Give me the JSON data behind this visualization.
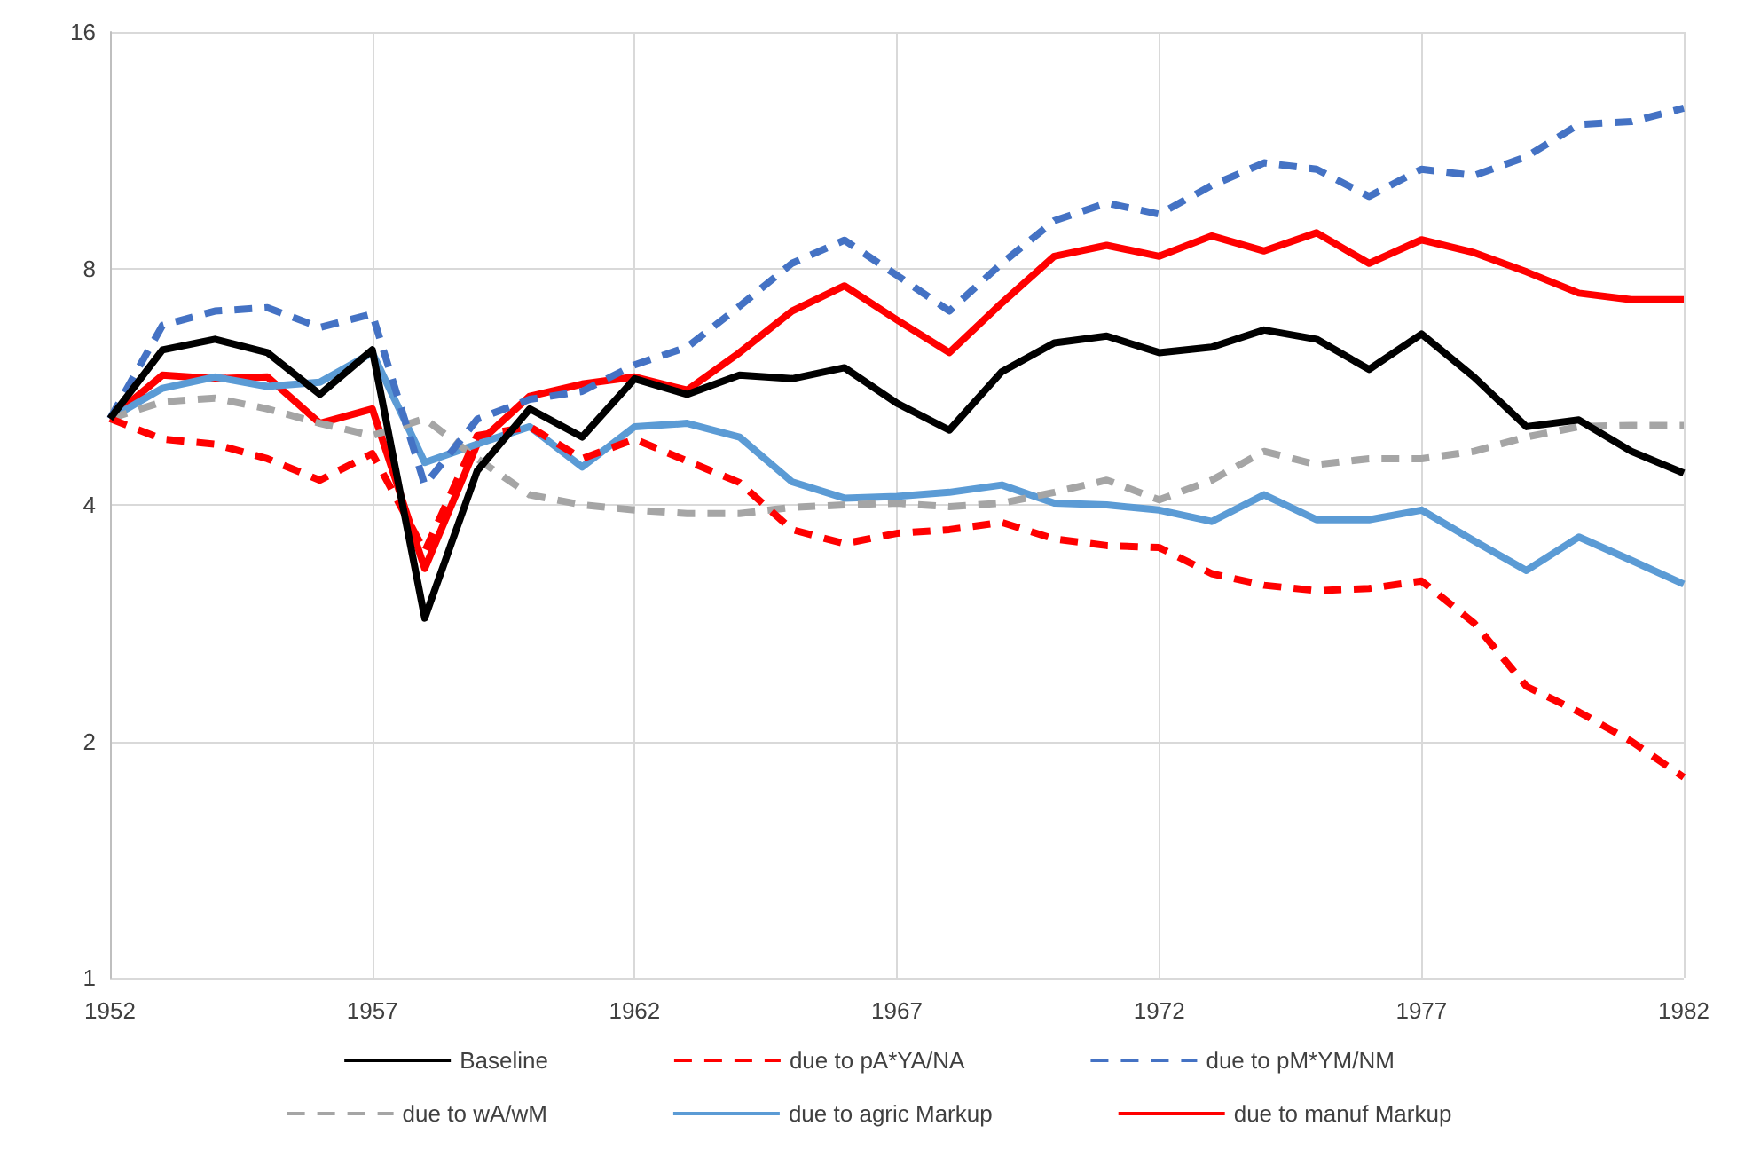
{
  "chart_data": {
    "type": "line",
    "x": [
      1952,
      1953,
      1954,
      1955,
      1956,
      1957,
      1958,
      1959,
      1960,
      1961,
      1962,
      1963,
      1964,
      1965,
      1966,
      1967,
      1968,
      1969,
      1970,
      1971,
      1972,
      1973,
      1974,
      1975,
      1976,
      1977,
      1978,
      1979,
      1980,
      1981,
      1982
    ],
    "xlim": [
      1952,
      1982
    ],
    "xticks": [
      1952,
      1957,
      1962,
      1967,
      1972,
      1977,
      1982
    ],
    "ylim": [
      1,
      16
    ],
    "yticks": [
      1,
      2,
      4,
      8,
      16
    ],
    "log": "y",
    "grid": true,
    "legend": "bottom",
    "marker": "none",
    "series": [
      {
        "name": "Baseline",
        "color": "#000000",
        "line_style": "solid",
        "values": [
          5.15,
          6.3,
          6.5,
          6.25,
          5.53,
          6.3,
          2.87,
          4.42,
          5.3,
          4.88,
          5.79,
          5.53,
          5.85,
          5.79,
          5.98,
          5.39,
          4.98,
          5.91,
          6.43,
          6.56,
          6.25,
          6.35,
          6.68,
          6.5,
          5.95,
          6.6,
          5.82,
          5.03,
          5.13,
          4.68,
          4.39
        ]
      },
      {
        "name": "due to pA*YA/NA",
        "color": "#ff0000",
        "line_style": "dashed",
        "values": [
          5.15,
          4.85,
          4.78,
          4.58,
          4.3,
          4.65,
          3.49,
          4.9,
          5.03,
          4.58,
          4.85,
          4.55,
          4.27,
          3.72,
          3.57,
          3.68,
          3.72,
          3.8,
          3.62,
          3.55,
          3.53,
          3.27,
          3.16,
          3.11,
          3.13,
          3.2,
          2.83,
          2.35,
          2.18,
          2.0,
          1.8
        ]
      },
      {
        "name": "due to pM*YM/NM",
        "color": "#4472c4",
        "line_style": "dashed",
        "values": [
          5.15,
          6.77,
          7.06,
          7.13,
          6.73,
          7.0,
          4.24,
          5.14,
          5.45,
          5.58,
          6.03,
          6.35,
          7.16,
          8.12,
          8.69,
          7.84,
          7.06,
          8.12,
          9.2,
          9.69,
          9.38,
          10.2,
          10.9,
          10.7,
          9.88,
          10.7,
          10.5,
          11.1,
          12.2,
          12.3,
          12.8
        ]
      },
      {
        "name": "due to wA/wM",
        "color": "#a5a5a5",
        "line_style": "dashed",
        "values": [
          5.15,
          5.41,
          5.47,
          5.3,
          5.08,
          4.9,
          5.15,
          4.58,
          4.12,
          4.0,
          3.94,
          3.9,
          3.9,
          3.97,
          4.0,
          4.02,
          3.98,
          4.02,
          4.15,
          4.3,
          4.06,
          4.3,
          4.68,
          4.5,
          4.58,
          4.58,
          4.68,
          4.88,
          5.03,
          5.05,
          5.05
        ]
      },
      {
        "name": "due to agric Markup",
        "color": "#5b9bd5",
        "line_style": "solid",
        "values": [
          5.15,
          5.63,
          5.82,
          5.66,
          5.73,
          6.25,
          4.53,
          4.78,
          5.03,
          4.47,
          5.03,
          5.08,
          4.88,
          4.28,
          4.08,
          4.1,
          4.15,
          4.24,
          4.02,
          4.0,
          3.94,
          3.81,
          4.12,
          3.83,
          3.83,
          3.94,
          3.6,
          3.3,
          3.64,
          3.4,
          3.17
        ]
      },
      {
        "name": "due to manuf Markup",
        "color": "#ff0000",
        "line_style": "solid",
        "values": [
          5.15,
          5.85,
          5.79,
          5.82,
          5.08,
          5.3,
          3.32,
          4.78,
          5.5,
          5.7,
          5.82,
          5.6,
          6.25,
          7.06,
          7.6,
          6.88,
          6.25,
          7.23,
          8.29,
          8.56,
          8.29,
          8.8,
          8.42,
          8.88,
          8.12,
          8.7,
          8.38,
          7.92,
          7.44,
          7.3,
          7.3
        ]
      }
    ]
  }
}
